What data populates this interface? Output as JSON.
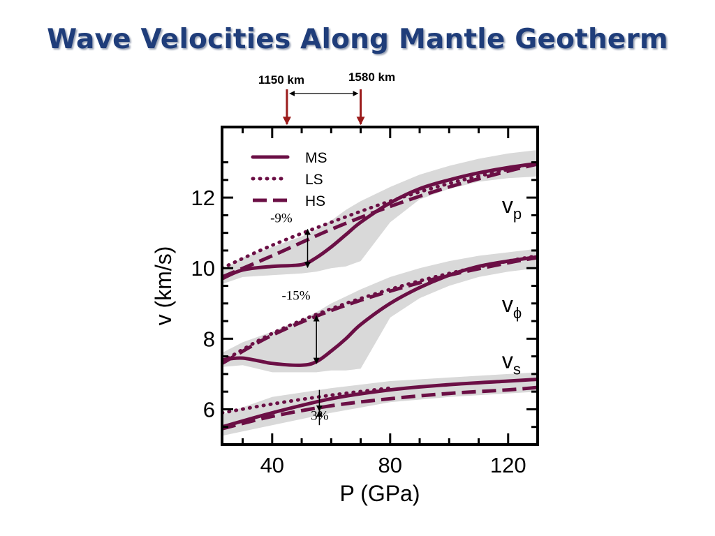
{
  "slide": {
    "title": "Wave Velocities Along Mantle Geotherm"
  },
  "depth_markers": [
    {
      "label": "1150 km",
      "pressure": 45
    },
    {
      "label": "1580 km",
      "pressure": 70
    }
  ],
  "colors": {
    "curve": "#6b0f45",
    "band": "#d9d9d9",
    "marker": "#9b1b1b",
    "title": "#1f3d7a"
  },
  "chart_data": {
    "type": "line",
    "xlabel": "P (GPa)",
    "ylabel": "v (km/s)",
    "xlim": [
      23,
      130
    ],
    "ylim": [
      5,
      14
    ],
    "x_ticks": [
      40,
      80,
      120
    ],
    "y_ticks": [
      6,
      8,
      10,
      12
    ],
    "legend": {
      "placement": "top-left",
      "entries": [
        {
          "label": "MS",
          "style": "solid"
        },
        {
          "label": "LS",
          "style": "dotted"
        },
        {
          "label": "HS",
          "style": "dashed"
        }
      ]
    },
    "curve_labels": [
      {
        "base": "v",
        "sub": "p",
        "x": 125,
        "y": 11.8
      },
      {
        "base": "v",
        "sub": "ϕ",
        "x": 125,
        "y": 9.0
      },
      {
        "base": "v",
        "sub": "s",
        "x": 125,
        "y": 7.4
      }
    ],
    "annotations": [
      {
        "text": "-9%",
        "x": 45,
        "y": 11.3
      },
      {
        "text": "-15%",
        "x": 50,
        "y": 9.1
      },
      {
        "text": "3%",
        "x": 58,
        "y": 5.7
      }
    ],
    "series": [
      {
        "group": "vp",
        "name": "MS",
        "style": "solid",
        "x": [
          23,
          30,
          40,
          50,
          55,
          60,
          65,
          70,
          80,
          90,
          100,
          110,
          120,
          130
        ],
        "y": [
          9.7,
          9.95,
          10.05,
          10.1,
          10.3,
          10.6,
          10.95,
          11.3,
          11.85,
          12.25,
          12.5,
          12.7,
          12.85,
          12.97
        ]
      },
      {
        "group": "vp",
        "name": "LS",
        "style": "dotted",
        "x": [
          23,
          40,
          60,
          80,
          100,
          120,
          130
        ],
        "y": [
          10.0,
          10.65,
          11.3,
          11.9,
          12.4,
          12.8,
          13.0
        ]
      },
      {
        "group": "vp",
        "name": "HS",
        "style": "dashed",
        "x": [
          23,
          40,
          60,
          80,
          100,
          120,
          130
        ],
        "y": [
          9.75,
          10.35,
          11.1,
          11.75,
          12.3,
          12.75,
          12.95
        ]
      },
      {
        "group": "vphi",
        "name": "MS",
        "style": "solid",
        "x": [
          23,
          30,
          40,
          50,
          55,
          60,
          65,
          70,
          80,
          90,
          100,
          110,
          120,
          130
        ],
        "y": [
          7.4,
          7.45,
          7.3,
          7.25,
          7.35,
          7.65,
          8.0,
          8.4,
          9.0,
          9.45,
          9.8,
          10.05,
          10.2,
          10.32
        ]
      },
      {
        "group": "vphi",
        "name": "LS",
        "style": "dotted",
        "x": [
          23,
          40,
          60,
          80,
          100,
          120,
          130
        ],
        "y": [
          7.35,
          8.15,
          8.85,
          9.4,
          9.85,
          10.2,
          10.35
        ]
      },
      {
        "group": "vphi",
        "name": "HS",
        "style": "dashed",
        "x": [
          23,
          40,
          60,
          80,
          100,
          120,
          130
        ],
        "y": [
          7.3,
          8.1,
          8.8,
          9.35,
          9.8,
          10.15,
          10.3
        ]
      },
      {
        "group": "vs",
        "name": "MS",
        "style": "solid",
        "x": [
          23,
          40,
          60,
          80,
          100,
          120,
          130
        ],
        "y": [
          5.5,
          5.9,
          6.3,
          6.55,
          6.7,
          6.8,
          6.85
        ]
      },
      {
        "group": "vs",
        "name": "LS",
        "style": "dotted",
        "x": [
          23,
          40,
          60,
          80
        ],
        "y": [
          5.9,
          6.15,
          6.4,
          6.6
        ]
      },
      {
        "group": "vs",
        "name": "HS",
        "style": "dashed",
        "x": [
          23,
          40,
          60,
          80,
          100,
          120,
          130
        ],
        "y": [
          5.45,
          5.8,
          6.1,
          6.3,
          6.45,
          6.55,
          6.62
        ]
      }
    ],
    "bands": [
      {
        "group": "vp",
        "x": [
          23,
          30,
          40,
          50,
          55,
          60,
          65,
          70,
          80,
          90,
          100,
          110,
          120,
          130
        ],
        "upper": [
          9.95,
          10.3,
          10.6,
          10.9,
          11.1,
          11.35,
          11.65,
          11.9,
          12.3,
          12.65,
          12.9,
          13.1,
          13.25,
          13.35
        ],
        "lower": [
          9.55,
          9.75,
          9.8,
          9.85,
          9.9,
          10.0,
          10.05,
          10.2,
          11.3,
          11.95,
          12.25,
          12.45,
          12.55,
          12.6
        ]
      },
      {
        "group": "vphi",
        "x": [
          23,
          30,
          40,
          50,
          55,
          60,
          65,
          70,
          80,
          90,
          100,
          110,
          120,
          130
        ],
        "upper": [
          7.6,
          7.9,
          8.2,
          8.55,
          8.75,
          9.0,
          9.2,
          9.4,
          9.75,
          10.0,
          10.2,
          10.35,
          10.45,
          10.55
        ],
        "lower": [
          7.2,
          7.25,
          7.05,
          7.05,
          7.05,
          7.1,
          7.1,
          7.15,
          8.6,
          9.15,
          9.5,
          9.75,
          9.9,
          10.0
        ]
      },
      {
        "group": "vs",
        "x": [
          23,
          40,
          60,
          80,
          100,
          120,
          130
        ],
        "upper": [
          5.85,
          6.35,
          6.6,
          6.8,
          6.9,
          7.0,
          7.05
        ],
        "lower": [
          5.25,
          5.55,
          5.9,
          6.2,
          6.35,
          6.45,
          6.5
        ]
      }
    ]
  }
}
